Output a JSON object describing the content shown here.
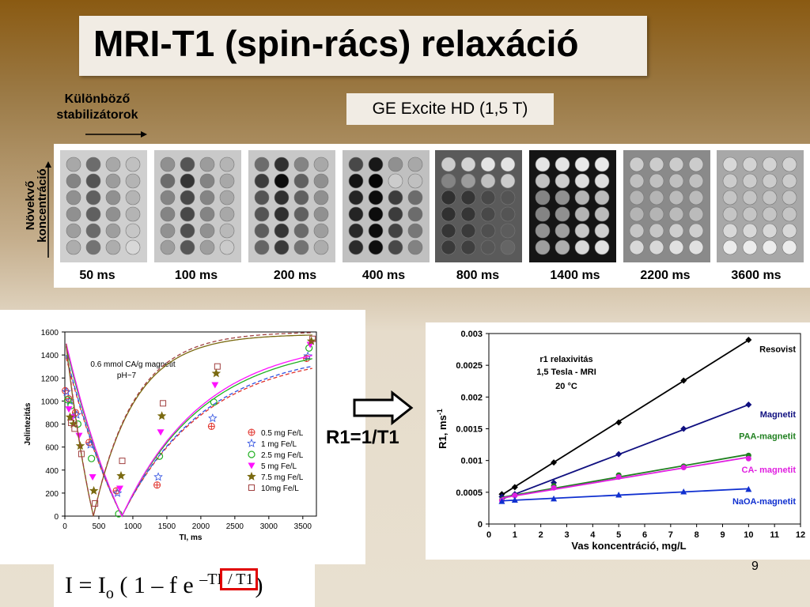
{
  "title": "MRI-T1 (spin-rács) relaxáció",
  "scanner": "GE Excite HD (1,5 T)",
  "stabilizers_label": [
    "Különböző",
    "stabilizátorok"
  ],
  "concentration_label": [
    "Növekvő",
    "koncentráció"
  ],
  "mri_images": [
    {
      "label": "50 ms"
    },
    {
      "label": "100 ms"
    },
    {
      "label": "200 ms"
    },
    {
      "label": "400 ms"
    },
    {
      "label": "800 ms"
    },
    {
      "label": "1400 ms"
    },
    {
      "label": "2200 ms"
    },
    {
      "label": "3600 ms"
    }
  ],
  "r1_equation": "R1=1/T1",
  "formula": {
    "lhs": "I = I",
    "sub": "o",
    "mid": " ( 1 – f e ",
    "sup_ti": "–TI",
    "sup_t1": " / T1",
    "end": ")"
  },
  "page_number": "9",
  "chart_data": [
    {
      "type": "scatter",
      "annotation": [
        "0.6 mmol CA/g magnetit",
        "pH~7"
      ],
      "xlabel": "TI, ms",
      "ylabel": "Jelintezitás",
      "xlim": [
        0,
        3700
      ],
      "ylim": [
        0,
        1600
      ],
      "xticks": [
        0,
        500,
        1000,
        1500,
        2000,
        2500,
        3000,
        3500
      ],
      "yticks": [
        0,
        200,
        400,
        600,
        800,
        1000,
        1200,
        1400,
        1600
      ],
      "legend_position": "right",
      "x": [
        50,
        100,
        200,
        400,
        800,
        1400,
        2200,
        3600
      ],
      "series": [
        {
          "name": "0.5 mg Fe/L",
          "color": "#e0302a",
          "marker": "circle-plus",
          "values": [
            1090,
            1020,
            900,
            640,
            220,
            270,
            780,
            1370
          ]
        },
        {
          "name": "1 mg Fe/L",
          "color": "#3050e0",
          "marker": "star-open",
          "values": [
            1080,
            1000,
            880,
            620,
            200,
            340,
            850,
            1390
          ]
        },
        {
          "name": "2.5 mg Fe/L",
          "color": "#20b020",
          "marker": "circle-open",
          "values": [
            1010,
            960,
            800,
            500,
            20,
            520,
            990,
            1460
          ]
        },
        {
          "name": "5 mg Fe/L",
          "color": "#ff10ff",
          "marker": "triangle-down",
          "values": [
            930,
            860,
            700,
            340,
            240,
            730,
            1140,
            1490
          ]
        },
        {
          "name": "7.5 mg Fe/L",
          "color": "#7a6a10",
          "marker": "star",
          "values": [
            860,
            800,
            610,
            220,
            350,
            870,
            1240,
            1520
          ]
        },
        {
          "name": "10mg Fe/L",
          "color": "#a04040",
          "marker": "square-open",
          "values": [
            810,
            760,
            540,
            110,
            480,
            980,
            1300,
            1540
          ]
        }
      ]
    },
    {
      "type": "line",
      "annotation": [
        "r1 relaxivitás",
        "1,5 Tesla - MRI",
        "20 °C"
      ],
      "xlabel": "Vas koncentráció, mg/L",
      "ylabel": "R1, ms-1",
      "xlim": [
        0,
        12
      ],
      "ylim": [
        0,
        0.003
      ],
      "xticks": [
        0,
        1,
        2,
        3,
        4,
        5,
        6,
        7,
        8,
        9,
        10,
        11,
        12
      ],
      "yticks": [
        "0",
        "0.0005",
        "0.001",
        "0.0015",
        "0.002",
        "0.0025",
        "0.003"
      ],
      "x": [
        0.5,
        1,
        2.5,
        5,
        7.5,
        10
      ],
      "series": [
        {
          "name": "Resovist",
          "color": "#000000",
          "marker": "diamond",
          "values": [
            0.00047,
            0.00058,
            0.00097,
            0.0016,
            0.00226,
            0.0029
          ]
        },
        {
          "name": "Magnetit",
          "color": "#101080",
          "marker": "diamond",
          "values": [
            0.00043,
            0.00047,
            0.00065,
            0.0011,
            0.0015,
            0.00188
          ]
        },
        {
          "name": "PAA-magnetit",
          "color": "#208020",
          "marker": "circle",
          "values": [
            0.00038,
            0.00045,
            0.0006,
            0.00077,
            0.00091,
            0.00108
          ]
        },
        {
          "name": "CA- magnetit",
          "color": "#e020e0",
          "marker": "circle",
          "values": [
            0.00037,
            0.00045,
            0.00057,
            0.00074,
            0.00089,
            0.00103
          ]
        },
        {
          "name": "NaOA-magnetit",
          "color": "#1030d0",
          "marker": "triangle",
          "values": [
            0.00036,
            0.00038,
            0.0004,
            0.00046,
            0.00051,
            0.00055
          ]
        }
      ]
    }
  ]
}
